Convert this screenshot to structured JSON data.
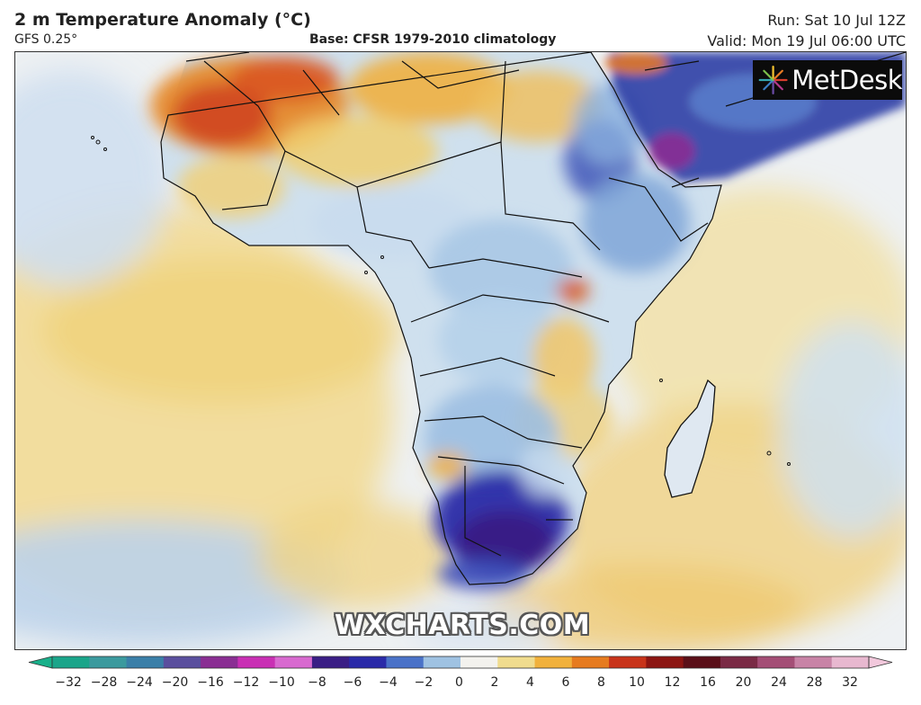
{
  "header": {
    "title": "2 m Temperature Anomaly (°C)",
    "model": "GFS 0.25°",
    "base": "Base: CFSR 1979-2010 climatology",
    "run": "Run: Sat 10 Jul 12Z",
    "valid": "Valid: Mon 19 Jul 06:00 UTC"
  },
  "logo": {
    "text": "MetDesk",
    "icon": "metdesk-starburst-icon"
  },
  "watermark": {
    "text": "WXCHARTS.COM"
  },
  "colorbar": {
    "ticks": [
      "−32",
      "−28",
      "−24",
      "−20",
      "−16",
      "−12",
      "−10",
      "−8",
      "−6",
      "−4",
      "−2",
      "0",
      "2",
      "4",
      "6",
      "8",
      "10",
      "12",
      "16",
      "20",
      "24",
      "28",
      "32"
    ],
    "colors": [
      "#1aa58a",
      "#3b9a9e",
      "#3a7fa8",
      "#5a4f9e",
      "#8a2e93",
      "#c92fb4",
      "#d86ad0",
      "#3a1e85",
      "#2a2aa8",
      "#4a72c8",
      "#9fc2e2",
      "#f3f2ee",
      "#f0dc8e",
      "#f1b13c",
      "#e67b1f",
      "#c8331a",
      "#8c1512",
      "#5a0f18",
      "#7a2a45",
      "#a44e76",
      "#c883a6",
      "#e8b8d0"
    ]
  },
  "map": {
    "region": "Africa",
    "legend_palette": {
      "cold_extreme": "#3a1e85",
      "cold_strong": "#2a2aa8",
      "cold": "#4a72c8",
      "cool": "#9fc2e2",
      "neutral": "#f3f2ee",
      "warm": "#f0dc8e",
      "warmer": "#f1b13c",
      "hot": "#e67b1f",
      "very_hot": "#c8331a"
    }
  }
}
